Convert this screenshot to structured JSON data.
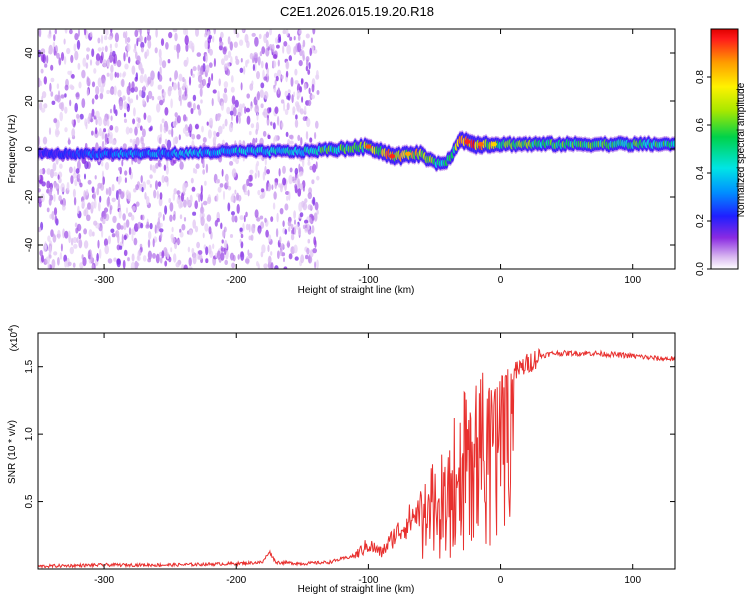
{
  "title": "C2E1.2026.015.19.20.R18",
  "chart_data": [
    {
      "type": "heatmap",
      "xlabel": "Height of straight line (km)",
      "ylabel": "Frequency (Hz)",
      "xlim": [
        -350,
        132
      ],
      "ylim": [
        -50,
        50
      ],
      "x_ticks": [
        -300,
        -200,
        -100,
        0,
        100
      ],
      "x_tick_labels": [
        "-300",
        "-200",
        "-100",
        "0",
        "100"
      ],
      "y_ticks": [
        40,
        20,
        0,
        -20,
        -40
      ],
      "y_tick_labels": [
        "40",
        "20",
        "0",
        "-20",
        "-40"
      ],
      "colorbar": {
        "label": "Normalized spectral amplitude",
        "range": [
          0,
          1
        ],
        "ticks": [
          0.0,
          0.2,
          0.4,
          0.6,
          0.8
        ],
        "tick_labels": [
          "0.0",
          "0.2",
          "0.4",
          "0.6",
          "0.8"
        ]
      },
      "noise_region": {
        "x_start": -350,
        "x_end": -138
      },
      "ridge": [
        {
          "x": -350,
          "f": -2,
          "amp": 0.2
        },
        {
          "x": -300,
          "f": -2,
          "amp": 0.3
        },
        {
          "x": -250,
          "f": -2,
          "amp": 0.35
        },
        {
          "x": -200,
          "f": -1,
          "amp": 0.4
        },
        {
          "x": -150,
          "f": -1,
          "amp": 0.45
        },
        {
          "x": -120,
          "f": 0,
          "amp": 0.6
        },
        {
          "x": -100,
          "f": 1,
          "amp": 0.7
        },
        {
          "x": -80,
          "f": -3,
          "amp": 0.85
        },
        {
          "x": -60,
          "f": -2,
          "amp": 0.75
        },
        {
          "x": -50,
          "f": -6,
          "amp": 0.55
        },
        {
          "x": -40,
          "f": -5,
          "amp": 0.5
        },
        {
          "x": -30,
          "f": 4,
          "amp": 0.8
        },
        {
          "x": -20,
          "f": 2,
          "amp": 0.9
        },
        {
          "x": 0,
          "f": 2,
          "amp": 0.6
        },
        {
          "x": 50,
          "f": 2,
          "amp": 0.55
        },
        {
          "x": 100,
          "f": 2,
          "amp": 0.55
        },
        {
          "x": 132,
          "f": 2,
          "amp": 0.5
        }
      ]
    },
    {
      "type": "line",
      "xlabel": "Height of straight line (km)",
      "ylabel": "SNR (10 * v/v)",
      "y_multiplier": "(x10",
      "y_multiplier_exp": "4",
      "y_multiplier_close": ")",
      "xlim": [
        -350,
        132
      ],
      "ylim": [
        0,
        1.75
      ],
      "x_ticks": [
        -300,
        -200,
        -100,
        0,
        100
      ],
      "x_tick_labels": [
        "-300",
        "-200",
        "-100",
        "0",
        "100"
      ],
      "y_ticks": [
        0.5,
        1.0,
        1.5
      ],
      "y_tick_labels": [
        "0.5",
        "1.0",
        "1.5"
      ],
      "color": "#e8302e",
      "series": [
        {
          "x": [
            -350,
            -300,
            -250,
            -200,
            -180,
            -175,
            -170,
            -150,
            -130,
            -110,
            -100,
            -90,
            -80,
            -70,
            -60,
            -50,
            -40,
            -30,
            -20,
            -10,
            0,
            10,
            20,
            30,
            40,
            50,
            70,
            100,
            120,
            132
          ],
          "y": [
            0.02,
            0.03,
            0.03,
            0.04,
            0.05,
            0.13,
            0.05,
            0.04,
            0.05,
            0.1,
            0.18,
            0.12,
            0.25,
            0.35,
            0.45,
            0.6,
            0.8,
            0.95,
            1.1,
            1.25,
            1.35,
            1.45,
            1.52,
            1.58,
            1.6,
            1.6,
            1.6,
            1.58,
            1.56,
            1.56
          ]
        }
      ]
    }
  ]
}
